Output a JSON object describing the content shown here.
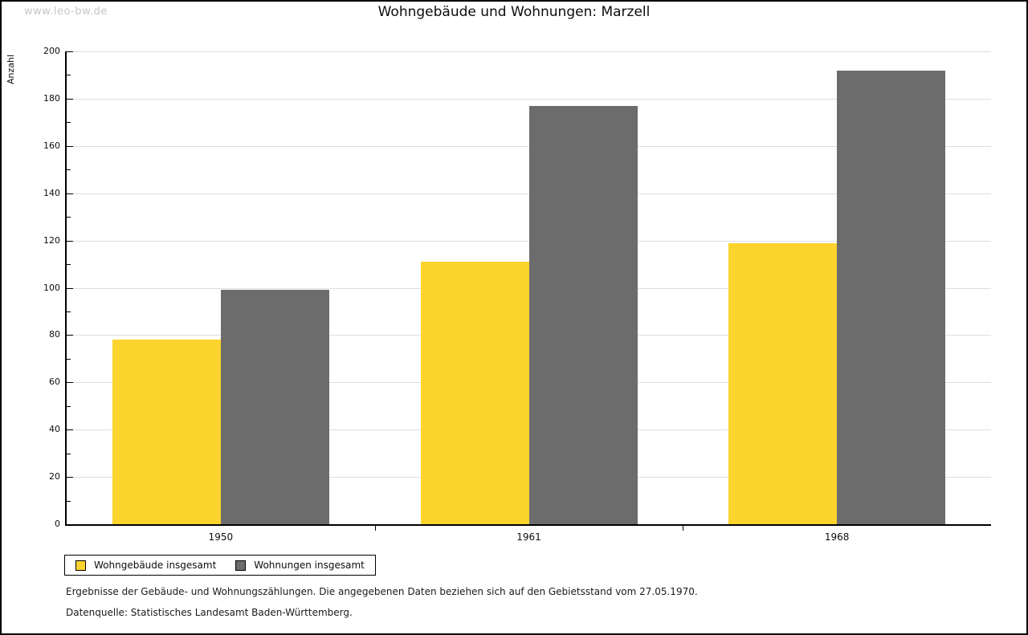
{
  "watermark": "www.leo-bw.de",
  "title": "Wohngebäude und Wohnungen: Marzell",
  "chart_data": {
    "type": "bar",
    "title": "Wohngebäude und Wohnungen: Marzell",
    "categories": [
      "1950",
      "1961",
      "1968"
    ],
    "series": [
      {
        "name": "Wohngebäude insgesamt",
        "color": "#fcd42d",
        "values": [
          78,
          111,
          119
        ]
      },
      {
        "name": "Wohnungen insgesamt",
        "color": "#6c6c6c",
        "values": [
          99,
          177,
          192
        ]
      }
    ],
    "xlabel": "",
    "ylabel": "Anzahl",
    "ylim": [
      0,
      200
    ],
    "yticks": [
      0,
      20,
      40,
      60,
      80,
      100,
      120,
      140,
      160,
      180,
      200
    ],
    "minor_tick_step": 10,
    "grid": true,
    "legend_position": "bottom-left",
    "grid_color": "#dedede"
  },
  "legend": {
    "items": [
      {
        "label": "Wohngebäude insgesamt",
        "color": "#fcd42d"
      },
      {
        "label": "Wohnungen insgesamt",
        "color": "#6c6c6c"
      }
    ]
  },
  "footer": {
    "line1": "Ergebnisse der Gebäude- und Wohnungszählungen. Die angegebenen Daten beziehen sich auf den Gebietsstand vom 27.05.1970.",
    "line2": "Datenquelle: Statistisches Landesamt Baden-Württemberg."
  }
}
